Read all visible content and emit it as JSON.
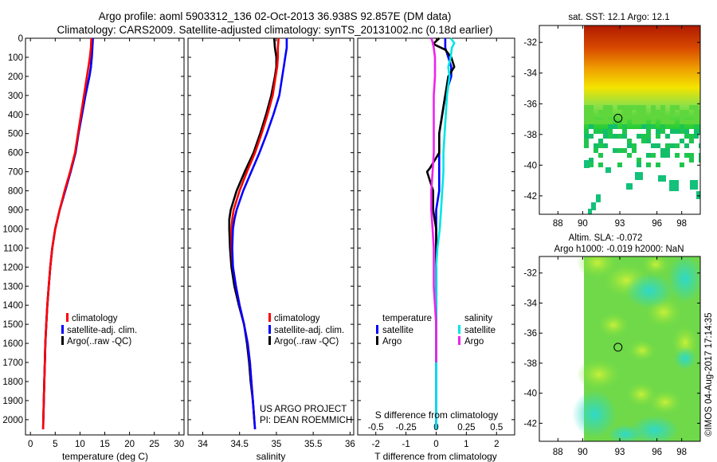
{
  "title": {
    "line1": "Argo profile: aoml 5903312_136 02-Oct-2013 36.938S 92.857E (DM data)",
    "line2": "Climatology: CARS2009. Satellite-adjusted climatology: synTS_20131002.nc (0.18d earlier)"
  },
  "credits": {
    "line1": "US ARGO PROJECT",
    "line2": "PI: DEAN ROEMMICH"
  },
  "watermark": "©IMOS 04-Aug-2017 17:14:35",
  "colors": {
    "climatology": "#ff0000",
    "satellite": "#0000ff",
    "argo": "#000000",
    "sat_salinity": "#00e5e5",
    "argo_salinity": "#ee22ee"
  },
  "chart_data": [
    {
      "type": "line",
      "xlabel": "temperature (deg C)",
      "xticks": [
        0,
        5,
        10,
        15,
        20,
        25,
        30
      ],
      "xlim": [
        -1,
        31
      ],
      "ylim": [
        2080,
        0
      ],
      "yticks": [
        0,
        100,
        200,
        300,
        400,
        500,
        600,
        700,
        800,
        900,
        1000,
        1100,
        1200,
        1300,
        1400,
        1500,
        1600,
        1700,
        1800,
        1900,
        2000
      ],
      "legend": [
        "climatology",
        "satellite-adj. clim.",
        "Argo(..raw -QC)"
      ],
      "series": [
        {
          "name": "climatology",
          "color": "#ff0000",
          "depth": [
            0,
            50,
            100,
            150,
            200,
            300,
            400,
            500,
            600,
            700,
            800,
            900,
            1000,
            1100,
            1200,
            1300,
            1400,
            1500,
            1600,
            1700,
            1800,
            1900,
            2000,
            2050
          ],
          "values": [
            12.3,
            12.2,
            12.0,
            11.7,
            11.4,
            10.8,
            10.2,
            9.6,
            9.0,
            8.0,
            6.9,
            5.9,
            5.0,
            4.4,
            4.0,
            3.7,
            3.4,
            3.2,
            3.0,
            2.9,
            2.8,
            2.7,
            2.6,
            2.55
          ]
        },
        {
          "name": "satellite-adj. clim.",
          "color": "#0000ff",
          "depth": [
            0,
            50,
            100,
            150,
            200,
            300,
            400,
            500,
            600,
            700,
            800,
            900,
            1000,
            1100,
            1200,
            1300,
            1400,
            1500,
            1600,
            1700,
            1800,
            1900,
            2000,
            2050
          ],
          "values": [
            12.6,
            12.5,
            12.4,
            12.2,
            11.9,
            11.1,
            10.4,
            9.7,
            9.1,
            8.1,
            7.0,
            5.9,
            5.0,
            4.4,
            4.0,
            3.7,
            3.4,
            3.2,
            3.0,
            2.9,
            2.8,
            2.7,
            2.6,
            2.55
          ]
        },
        {
          "name": "Argo(..raw -QC)",
          "color": "#000000",
          "depth": [
            0,
            50,
            100,
            150,
            200,
            300,
            400,
            500,
            600,
            700,
            800,
            900,
            1000,
            1100,
            1200,
            1300,
            1400,
            1500,
            1600,
            1700,
            1800,
            1900,
            2000
          ],
          "values": [
            12.4,
            12.4,
            12.3,
            12.2,
            11.9,
            11.1,
            10.4,
            9.7,
            9.1,
            8.1,
            7.0,
            5.9,
            5.0,
            4.4,
            4.0,
            3.7,
            3.4,
            3.2,
            3.0,
            2.9,
            2.8,
            2.7,
            2.6
          ]
        }
      ]
    },
    {
      "type": "line",
      "xlabel": "salinity",
      "xticks": [
        34,
        34.5,
        35,
        35.5,
        36
      ],
      "xlim": [
        33.8,
        36.05
      ],
      "ylim": [
        2080,
        0
      ],
      "legend": [
        "climatology",
        "satellite-adj. clim.",
        "Argo(..raw -QC)"
      ],
      "series": [
        {
          "name": "climatology",
          "color": "#ff0000",
          "depth": [
            0,
            50,
            100,
            150,
            200,
            300,
            400,
            500,
            600,
            700,
            800,
            900,
            950,
            1000,
            1100,
            1200,
            1300,
            1400,
            1500,
            1600,
            1700,
            1800,
            1900,
            2000,
            2050
          ],
          "values": [
            35.03,
            35.02,
            35.02,
            35.01,
            34.99,
            34.95,
            34.88,
            34.8,
            34.71,
            34.6,
            34.5,
            34.42,
            34.4,
            34.39,
            34.39,
            34.41,
            34.45,
            34.5,
            34.56,
            34.61,
            34.64,
            34.66,
            34.68,
            34.7,
            34.71
          ]
        },
        {
          "name": "satellite-adj. clim.",
          "color": "#0000ff",
          "depth": [
            0,
            50,
            100,
            150,
            200,
            300,
            400,
            500,
            600,
            700,
            800,
            900,
            950,
            1000,
            1100,
            1200,
            1300,
            1400,
            1500,
            1600,
            1700,
            1800,
            1900,
            2000,
            2050
          ],
          "values": [
            35.14,
            35.14,
            35.12,
            35.1,
            35.08,
            35.04,
            34.96,
            34.87,
            34.77,
            34.66,
            34.55,
            34.46,
            34.43,
            34.41,
            34.4,
            34.41,
            34.45,
            34.5,
            34.56,
            34.61,
            34.64,
            34.66,
            34.68,
            34.7,
            34.71
          ]
        },
        {
          "name": "Argo(..raw -QC)",
          "color": "#000000",
          "depth": [
            0,
            50,
            100,
            150,
            200,
            300,
            400,
            500,
            600,
            700,
            800,
            900,
            950,
            1000,
            1100,
            1200,
            1300,
            1400,
            1500,
            1600,
            1700,
            1800,
            1900,
            2000
          ],
          "values": [
            34.97,
            34.98,
            35.0,
            35.0,
            34.98,
            34.93,
            34.86,
            34.78,
            34.69,
            34.57,
            34.46,
            34.38,
            34.36,
            34.36,
            34.37,
            34.39,
            34.43,
            34.49,
            34.56,
            34.6,
            34.63,
            34.65,
            34.68,
            34.7
          ]
        }
      ]
    },
    {
      "type": "line",
      "xlabel": "T difference from climatology",
      "xticks": [
        -2,
        -1,
        0,
        1,
        2
      ],
      "xlim": [
        -2.6,
        2.6
      ],
      "top_xlabel": "S difference from climatology",
      "top_xticks": [
        {
          "value": -0.5,
          "label": "-0.5"
        },
        {
          "value": -0.25,
          "label": "-0.25"
        },
        {
          "value": 0,
          "label": "0"
        },
        {
          "value": 0.25,
          "label": "0.25"
        },
        {
          "value": 0.5,
          "label": "0.5"
        }
      ],
      "top_xlim": [
        -0.65,
        0.65
      ],
      "legend_groups": [
        {
          "heading": "temperature",
          "items": [
            "satellite",
            "Argo"
          ]
        },
        {
          "heading": "salinity",
          "items": [
            "satellite",
            "Argo"
          ]
        }
      ],
      "series": [
        {
          "name": "satellite",
          "group": "temperature",
          "color": "#0000ff",
          "depth": [
            0,
            50,
            100,
            150,
            200,
            300,
            400,
            500,
            600,
            700,
            800,
            900,
            1000,
            1100,
            1200,
            1400,
            1600,
            1800,
            2000,
            2050
          ],
          "values": [
            0.3,
            0.3,
            0.4,
            0.5,
            0.5,
            0.3,
            0.2,
            0.1,
            0.1,
            0.1,
            0.1,
            0.0,
            0.0,
            0.0,
            0.0,
            0.0,
            0.0,
            0.0,
            0.0,
            0.0
          ]
        },
        {
          "name": "Argo",
          "group": "temperature",
          "color": "#000000",
          "depth": [
            0,
            30,
            60,
            100,
            150,
            200,
            300,
            400,
            500,
            600,
            680,
            700,
            750,
            800,
            900,
            1000,
            1100,
            1200,
            1400,
            1600,
            1700
          ],
          "values": [
            0.1,
            -0.1,
            0.3,
            0.5,
            0.6,
            0.4,
            0.3,
            0.2,
            0.1,
            0.1,
            -0.2,
            -0.3,
            -0.2,
            -0.1,
            -0.1,
            0.0,
            0.0,
            0.0,
            0.0,
            0.0,
            0.0
          ]
        },
        {
          "name": "satellite",
          "group": "salinity",
          "color": "#00e5e5",
          "depth": [
            0,
            25,
            50,
            100,
            150,
            200,
            300,
            400,
            500,
            600,
            700,
            800,
            900,
            1000,
            1100,
            1200,
            1400,
            1600,
            1800,
            2000,
            2050
          ],
          "values": [
            0.12,
            0.15,
            0.13,
            0.12,
            0.1,
            0.11,
            0.09,
            0.08,
            0.07,
            0.06,
            0.06,
            0.05,
            0.04,
            0.03,
            0.01,
            0.0,
            0.0,
            0.0,
            0.0,
            0.0,
            0.0
          ]
        },
        {
          "name": "Argo",
          "group": "salinity",
          "color": "#ee22ee",
          "depth": [
            0,
            20,
            50,
            100,
            150,
            200,
            300,
            400,
            500,
            600,
            700,
            800,
            900,
            1000,
            1100,
            1200,
            1300,
            1400,
            1500,
            1600,
            1700
          ],
          "values": [
            -0.04,
            -0.03,
            -0.02,
            -0.01,
            -0.01,
            -0.01,
            -0.02,
            -0.02,
            -0.02,
            -0.02,
            -0.03,
            -0.04,
            -0.04,
            -0.03,
            -0.02,
            -0.02,
            -0.02,
            -0.01,
            0.0,
            0.0,
            0.0
          ]
        }
      ]
    },
    {
      "type": "heatmap",
      "title": "sat. SST: 12.1  Argo: 12.1",
      "xticks": [
        88,
        90,
        93,
        96,
        98
      ],
      "xlim": [
        86.5,
        99.5
      ],
      "yticks": [
        -32,
        -34,
        -36,
        -38,
        -40,
        -42
      ],
      "ylim": [
        -43.2,
        -30.9
      ],
      "float_position": {
        "lon": 92.857,
        "lat": -36.938
      }
    },
    {
      "type": "heatmap",
      "title_line1": "Altim. SLA: -0.072",
      "title_line2": "Argo h1000: -0.019 h2000: NaN",
      "xticks": [
        88,
        90,
        93,
        96,
        98
      ],
      "xlim": [
        86.5,
        99.5
      ],
      "yticks": [
        -32,
        -34,
        -36,
        -38,
        -40,
        -42
      ],
      "ylim": [
        -43.2,
        -30.9
      ],
      "float_position": {
        "lon": 92.857,
        "lat": -36.938
      }
    }
  ]
}
